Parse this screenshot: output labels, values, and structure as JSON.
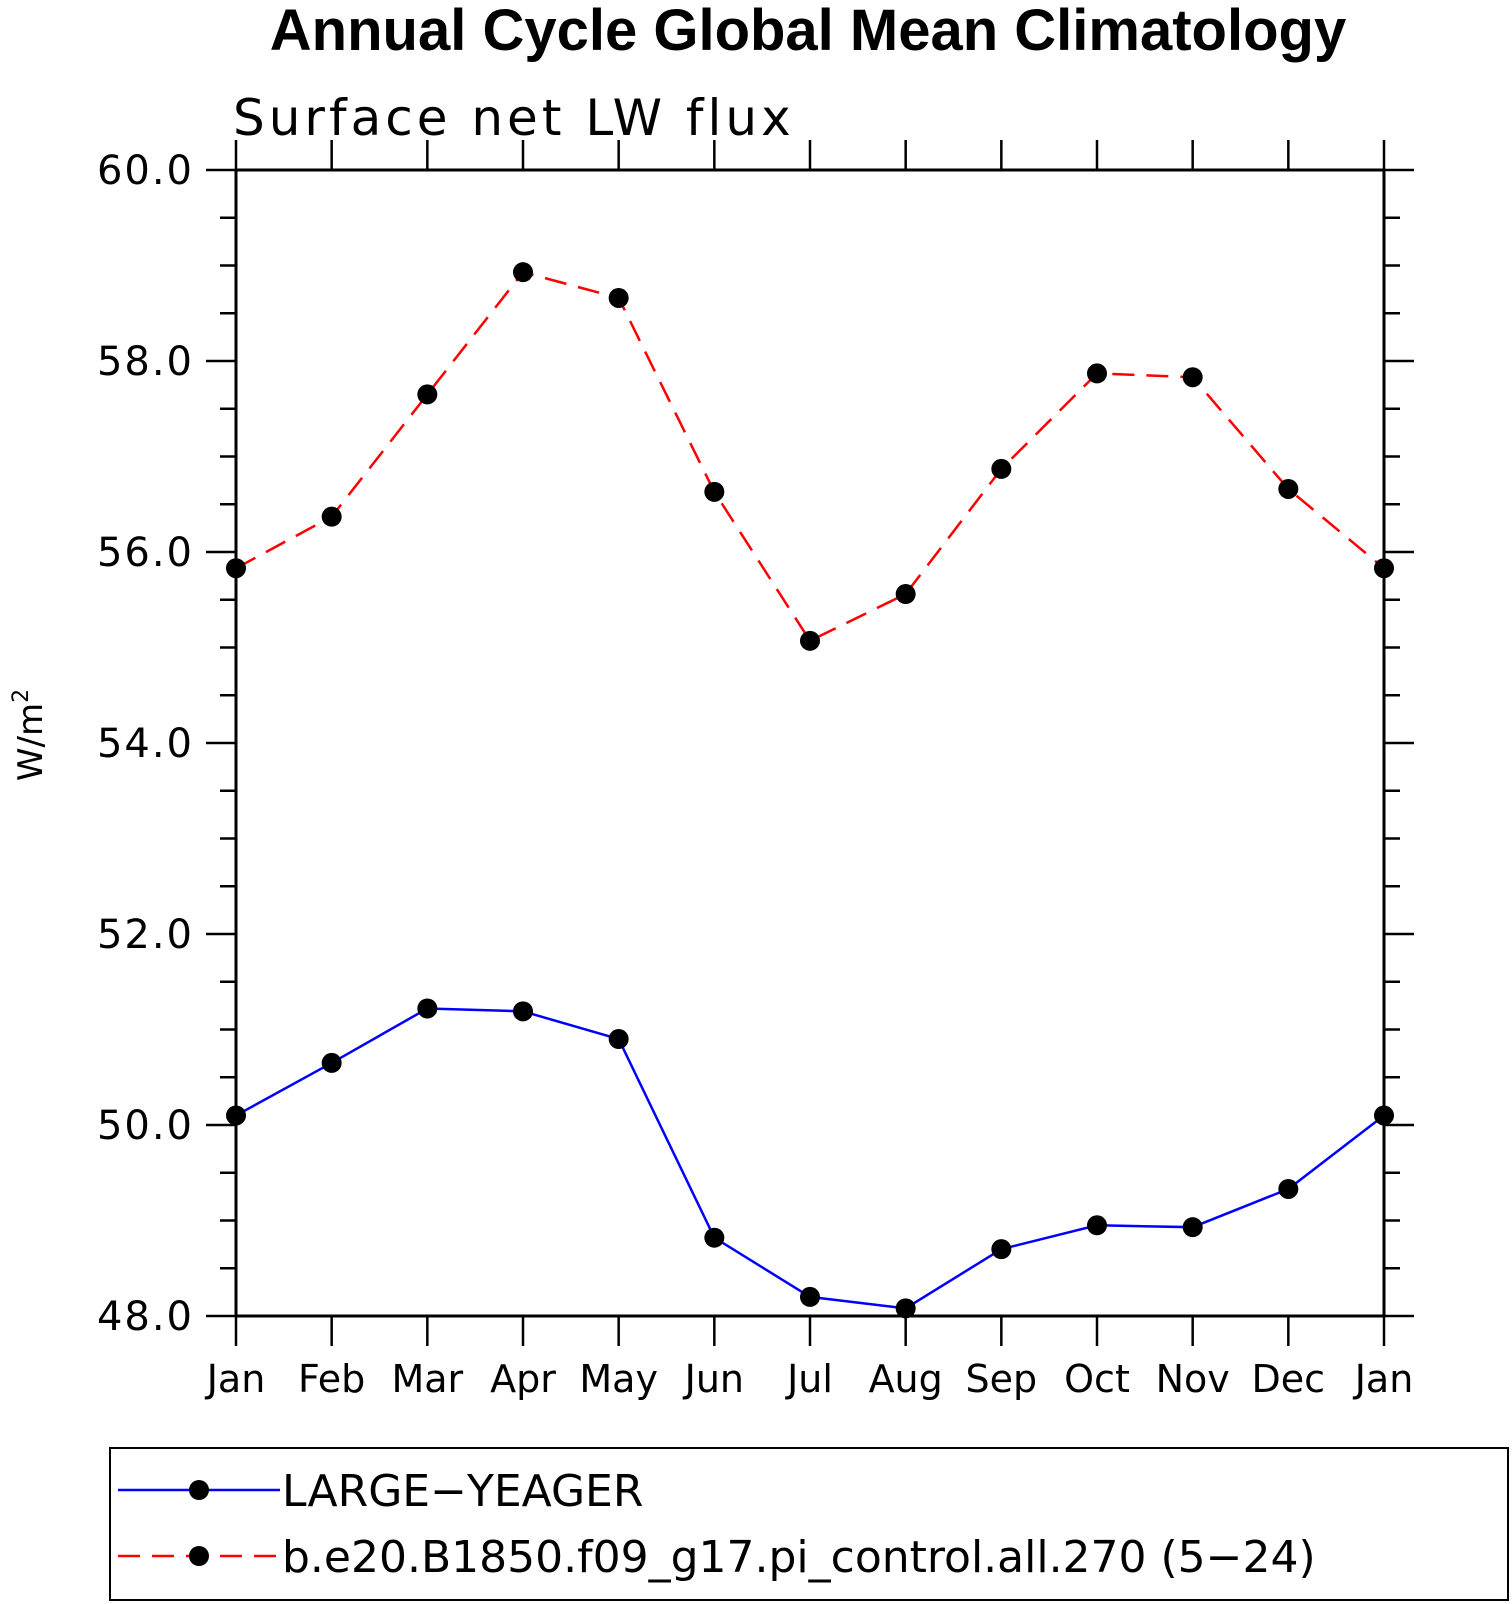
{
  "chart_data": {
    "type": "line",
    "title": "Annual Cycle Global Mean Climatology",
    "subtitle": "Surface net LW flux",
    "ylabel": "W/m",
    "ylabel_superscript": "2",
    "ylim": [
      48.0,
      60.0
    ],
    "yticks": [
      "48.0",
      "50.0",
      "52.0",
      "54.0",
      "56.0",
      "58.0",
      "60.0"
    ],
    "categories": [
      "Jan",
      "Feb",
      "Mar",
      "Apr",
      "May",
      "Jun",
      "Jul",
      "Aug",
      "Sep",
      "Oct",
      "Nov",
      "Dec",
      "Jan"
    ],
    "series": [
      {
        "name": "LARGE−YEAGER",
        "color": "#0000ff",
        "dash": "solid",
        "values": [
          50.1,
          50.65,
          51.22,
          51.19,
          50.9,
          48.82,
          48.2,
          48.08,
          48.7,
          48.95,
          48.93,
          49.33,
          50.1
        ]
      },
      {
        "name": "b.e20.B1850.f09_g17.pi_control.all.270 (5−24)",
        "color": "#ff0000",
        "dash": "dashed",
        "values": [
          55.83,
          56.37,
          57.65,
          58.93,
          58.66,
          56.63,
          55.07,
          55.56,
          56.87,
          57.87,
          57.83,
          56.66,
          55.83
        ]
      }
    ],
    "marker": "filled-circle",
    "grid": false,
    "legend_placement": "bottom"
  }
}
